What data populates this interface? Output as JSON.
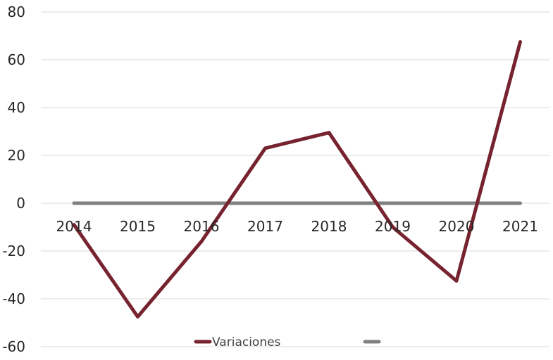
{
  "chart_data": {
    "type": "line",
    "categories": [
      "2014",
      "2015",
      "2016",
      "2017",
      "2018",
      "2019",
      "2020",
      "2021"
    ],
    "series": [
      {
        "name": "Variaciones",
        "values": [
          -9,
          -47.5,
          -16,
          23,
          29.5,
          -10,
          -32.5,
          67.5
        ],
        "color": "#76232f"
      },
      {
        "name": "",
        "values": [
          0,
          0,
          0,
          0,
          0,
          0,
          0,
          0
        ],
        "color": "#808080"
      }
    ],
    "ylim": [
      -60,
      80
    ],
    "yticks": [
      80,
      60,
      40,
      20,
      0,
      -20,
      -40,
      -60
    ],
    "grid": true,
    "legend_position": "bottom",
    "title": "",
    "xlabel": "",
    "ylabel": ""
  }
}
